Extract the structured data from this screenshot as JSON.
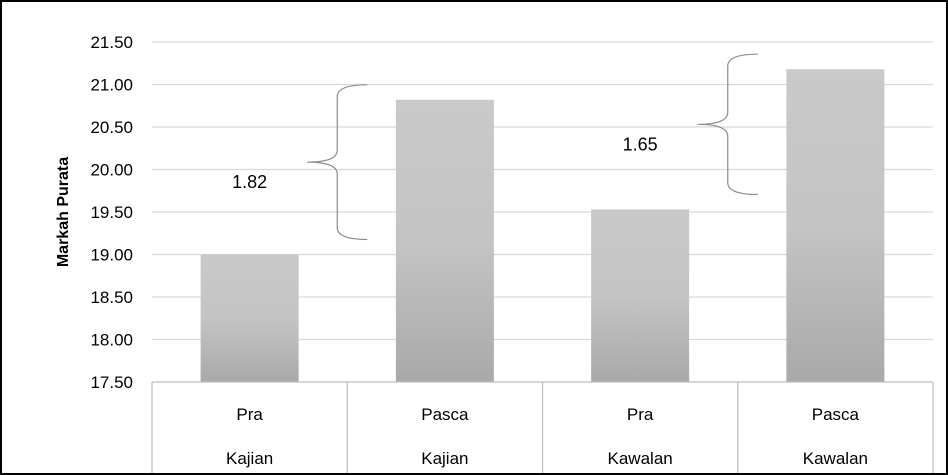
{
  "chart_data": {
    "type": "bar",
    "title": "",
    "xlabel": "",
    "ylabel": "Markah Purata",
    "ylim": [
      17.5,
      21.5
    ],
    "yticks": [
      "17.50",
      "18.00",
      "18.50",
      "19.00",
      "19.50",
      "20.00",
      "20.50",
      "21.00",
      "21.50"
    ],
    "grid": true,
    "legend": "none",
    "categories": [
      {
        "top": "Pra",
        "bottom": "Kajian"
      },
      {
        "top": "Pasca",
        "bottom": "Kajian"
      },
      {
        "top": "Pra",
        "bottom": "Kawalan"
      },
      {
        "top": "Pasca",
        "bottom": "Kawalan"
      }
    ],
    "values": [
      19.0,
      20.82,
      19.53,
      21.18
    ],
    "annotations": [
      {
        "text": "1.82",
        "from_category": 0,
        "to_category": 1
      },
      {
        "text": "1.65",
        "from_category": 2,
        "to_category": 3
      }
    ],
    "colors": {
      "bar": "#c4c4c4",
      "grid": "#d9d9d9",
      "axis": "#bfbfbf"
    }
  }
}
